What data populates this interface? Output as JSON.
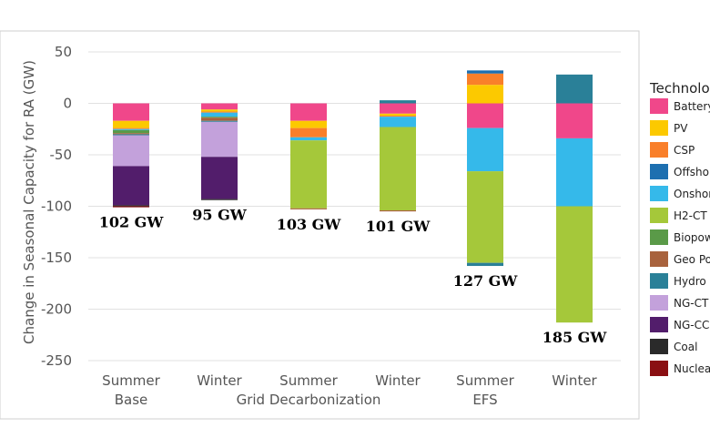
{
  "chart_data": {
    "type": "bar",
    "stacked": true,
    "ylabel": "Change in Seasonal Capacity for RA (GW)",
    "ylim": [
      -250,
      50
    ],
    "yticks": [
      50,
      0,
      -50,
      -100,
      -150,
      -200,
      -250
    ],
    "grid": true,
    "legend_title": "Technolo",
    "legend_position": "right",
    "categories": [
      "Summer",
      "Winter",
      "Summer",
      "Winter",
      "Summer",
      "Winter"
    ],
    "groups": [
      {
        "label": "Base",
        "categories": [
          0
        ]
      },
      {
        "label": "Grid Decarbonization",
        "categories": [
          1,
          2,
          3
        ]
      },
      {
        "label": "EFS",
        "categories": [
          4
        ]
      }
    ],
    "legend": [
      {
        "name": "Battery",
        "color": "#f0478a"
      },
      {
        "name": "PV",
        "color": "#fcc900"
      },
      {
        "name": "CSP",
        "color": "#f97f2a"
      },
      {
        "name": "Offsho",
        "color": "#1d6fb0"
      },
      {
        "name": "Onshor",
        "color": "#35b9ea"
      },
      {
        "name": "H2-CT",
        "color": "#a5c83a"
      },
      {
        "name": "Biopow",
        "color": "#5a9a48"
      },
      {
        "name": "Geo Po",
        "color": "#a8623d"
      },
      {
        "name": "Hydro",
        "color": "#2a8098"
      },
      {
        "name": "NG-CT",
        "color": "#c3a1db"
      },
      {
        "name": "NG-CC",
        "color": "#521d6b"
      },
      {
        "name": "Coal",
        "color": "#2a2a2a"
      },
      {
        "name": "Nuclea",
        "color": "#8a0f12"
      }
    ],
    "series": [
      {
        "name": "Battery",
        "values": [
          -17,
          -6,
          -17,
          -10,
          -24,
          -34
        ]
      },
      {
        "name": "PV",
        "values": [
          -7,
          -2,
          -7,
          -2,
          18,
          0
        ]
      },
      {
        "name": "CSP",
        "values": [
          -1,
          -1,
          -9,
          -1,
          11,
          0
        ]
      },
      {
        "name": "Offsho",
        "values": [
          0,
          0,
          0,
          0,
          3,
          0
        ]
      },
      {
        "name": "Onshor",
        "values": [
          -1,
          -4,
          -3,
          -10,
          -42,
          -66
        ]
      },
      {
        "name": "H2-CT",
        "values": [
          0,
          0,
          -66,
          -81,
          -89,
          -113
        ]
      },
      {
        "name": "Biopow",
        "values": [
          -3,
          -1,
          0,
          0,
          0,
          0
        ]
      },
      {
        "name": "Geo Po",
        "values": [
          -1,
          -3,
          -1,
          -1,
          0,
          0
        ]
      },
      {
        "name": "Hydro",
        "values": [
          -1,
          -1,
          0,
          3,
          -3,
          28
        ]
      },
      {
        "name": "NG-CT",
        "values": [
          -30,
          -34,
          0,
          0,
          0,
          0
        ]
      },
      {
        "name": "NG-CC",
        "values": [
          -38,
          -41,
          0,
          0,
          0,
          0
        ]
      },
      {
        "name": "Coal",
        "values": [
          -1,
          -1,
          0,
          0,
          0,
          0
        ]
      },
      {
        "name": "Nuclea",
        "values": [
          -1,
          0,
          0,
          0,
          0,
          0
        ]
      }
    ],
    "annotations": [
      {
        "text": "102 GW",
        "category": 0
      },
      {
        "text": "95 GW",
        "category": 1
      },
      {
        "text": "103 GW",
        "category": 2
      },
      {
        "text": "101 GW",
        "category": 3
      },
      {
        "text": "127 GW",
        "category": 4
      },
      {
        "text": "185 GW",
        "category": 5
      }
    ]
  }
}
